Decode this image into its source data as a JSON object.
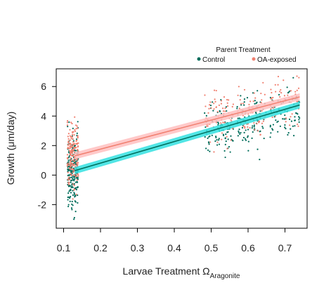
{
  "chart_data": {
    "type": "scatter",
    "xlabel": "Larvae Treatment Ω",
    "xlabel_subscript": "Aragonite",
    "ylabel": "Growth (μm/day)",
    "xlim": [
      0.08,
      0.76
    ],
    "ylim": [
      -3.6,
      7.2
    ],
    "xticks": [
      "0.1",
      "0.2",
      "0.3",
      "0.4",
      "0.5",
      "0.6",
      "0.7"
    ],
    "yticks": [
      "-2",
      "0",
      "2",
      "4",
      "6"
    ],
    "grid": false,
    "legend": {
      "title": "Parent Treatment",
      "placement": "top-right",
      "entries": [
        "Control",
        "OA-exposed"
      ]
    },
    "series": [
      {
        "name": "Control",
        "color": "#006d5b",
        "band_color": "#33e0e0",
        "fit": {
          "x": [
            0.13,
            0.74
          ],
          "y": [
            0.3,
            4.75
          ]
        },
        "clusters": [
          {
            "x_range": [
              0.11,
              0.14
            ],
            "y_mean": 0.2,
            "y_sd": 1.2,
            "n": 230
          },
          {
            "x_range": [
              0.48,
              0.56
            ],
            "y_mean": 3.2,
            "y_sd": 0.9,
            "n": 90
          },
          {
            "x_range": [
              0.57,
              0.65
            ],
            "y_mean": 3.6,
            "y_sd": 0.9,
            "n": 85
          },
          {
            "x_range": [
              0.66,
              0.74
            ],
            "y_mean": 4.2,
            "y_sd": 0.8,
            "n": 75
          }
        ]
      },
      {
        "name": "OA-exposed",
        "color": "#f08070",
        "band_color": "#ffc0c0",
        "fit": {
          "x": [
            0.13,
            0.74
          ],
          "y": [
            1.3,
            5.3
          ]
        },
        "clusters": [
          {
            "x_range": [
              0.11,
              0.14
            ],
            "y_mean": 1.5,
            "y_sd": 1.1,
            "n": 180
          },
          {
            "x_range": [
              0.48,
              0.56
            ],
            "y_mean": 3.9,
            "y_sd": 0.8,
            "n": 70
          },
          {
            "x_range": [
              0.57,
              0.65
            ],
            "y_mean": 4.3,
            "y_sd": 0.8,
            "n": 70
          },
          {
            "x_range": [
              0.66,
              0.74
            ],
            "y_mean": 4.9,
            "y_sd": 0.7,
            "n": 60
          }
        ]
      }
    ]
  }
}
